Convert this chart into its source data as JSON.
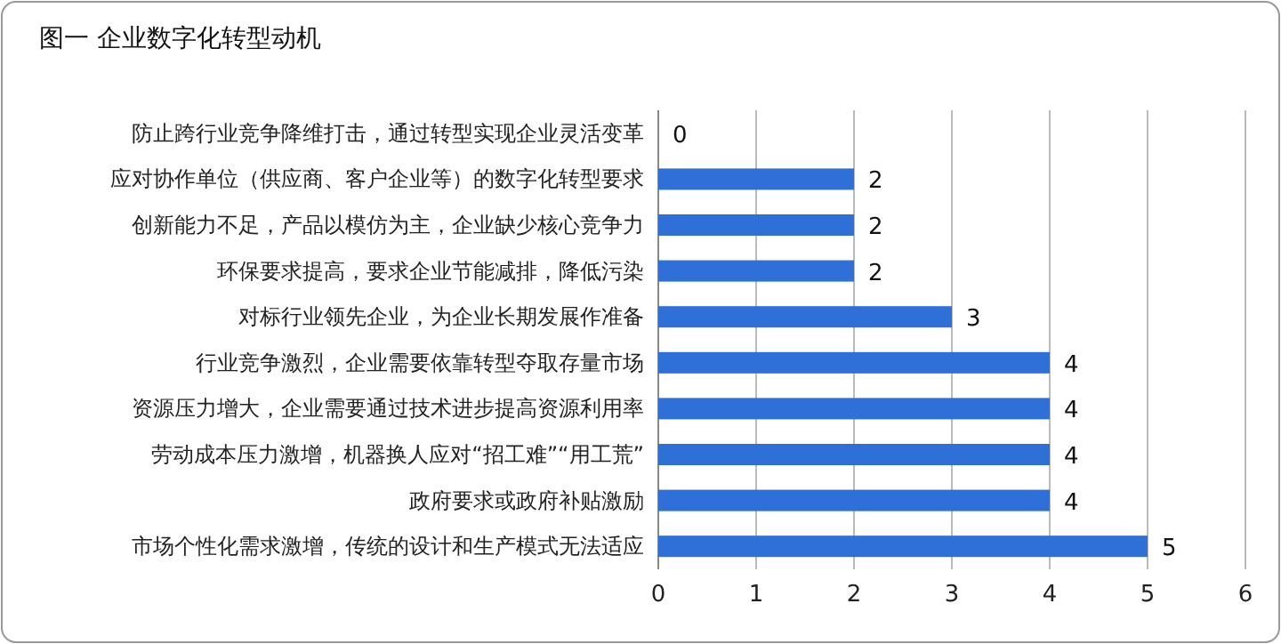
{
  "chart_data": {
    "type": "bar",
    "orientation": "horizontal",
    "title": "图一  企业数字化转型动机",
    "categories": [
      "防止跨行业竞争降维打击，通过转型实现企业灵活变革",
      "应对协作单位（供应商、客户企业等）的数字化转型要求",
      "创新能力不足，产品以模仿为主，企业缺少核心竞争力",
      "环保要求提高，要求企业节能减排，降低污染",
      "对标行业领先企业，为企业长期发展作准备",
      "行业竞争激烈，企业需要依靠转型夺取存量市场",
      "资源压力增大，企业需要通过技术进步提高资源利用率",
      "劳动成本压力激增，机器换人应对“招工难”“用工荒”",
      "政府要求或政府补贴激励",
      "市场个性化需求激增，传统的设计和生产模式无法适应"
    ],
    "values": [
      0,
      2,
      2,
      2,
      3,
      4,
      4,
      4,
      4,
      5
    ],
    "color": "#2f6fd8",
    "xlim": [
      0,
      6
    ],
    "xticks": [
      0,
      1,
      2,
      3,
      4,
      5,
      6
    ],
    "grid": "x",
    "data_labels": true
  }
}
